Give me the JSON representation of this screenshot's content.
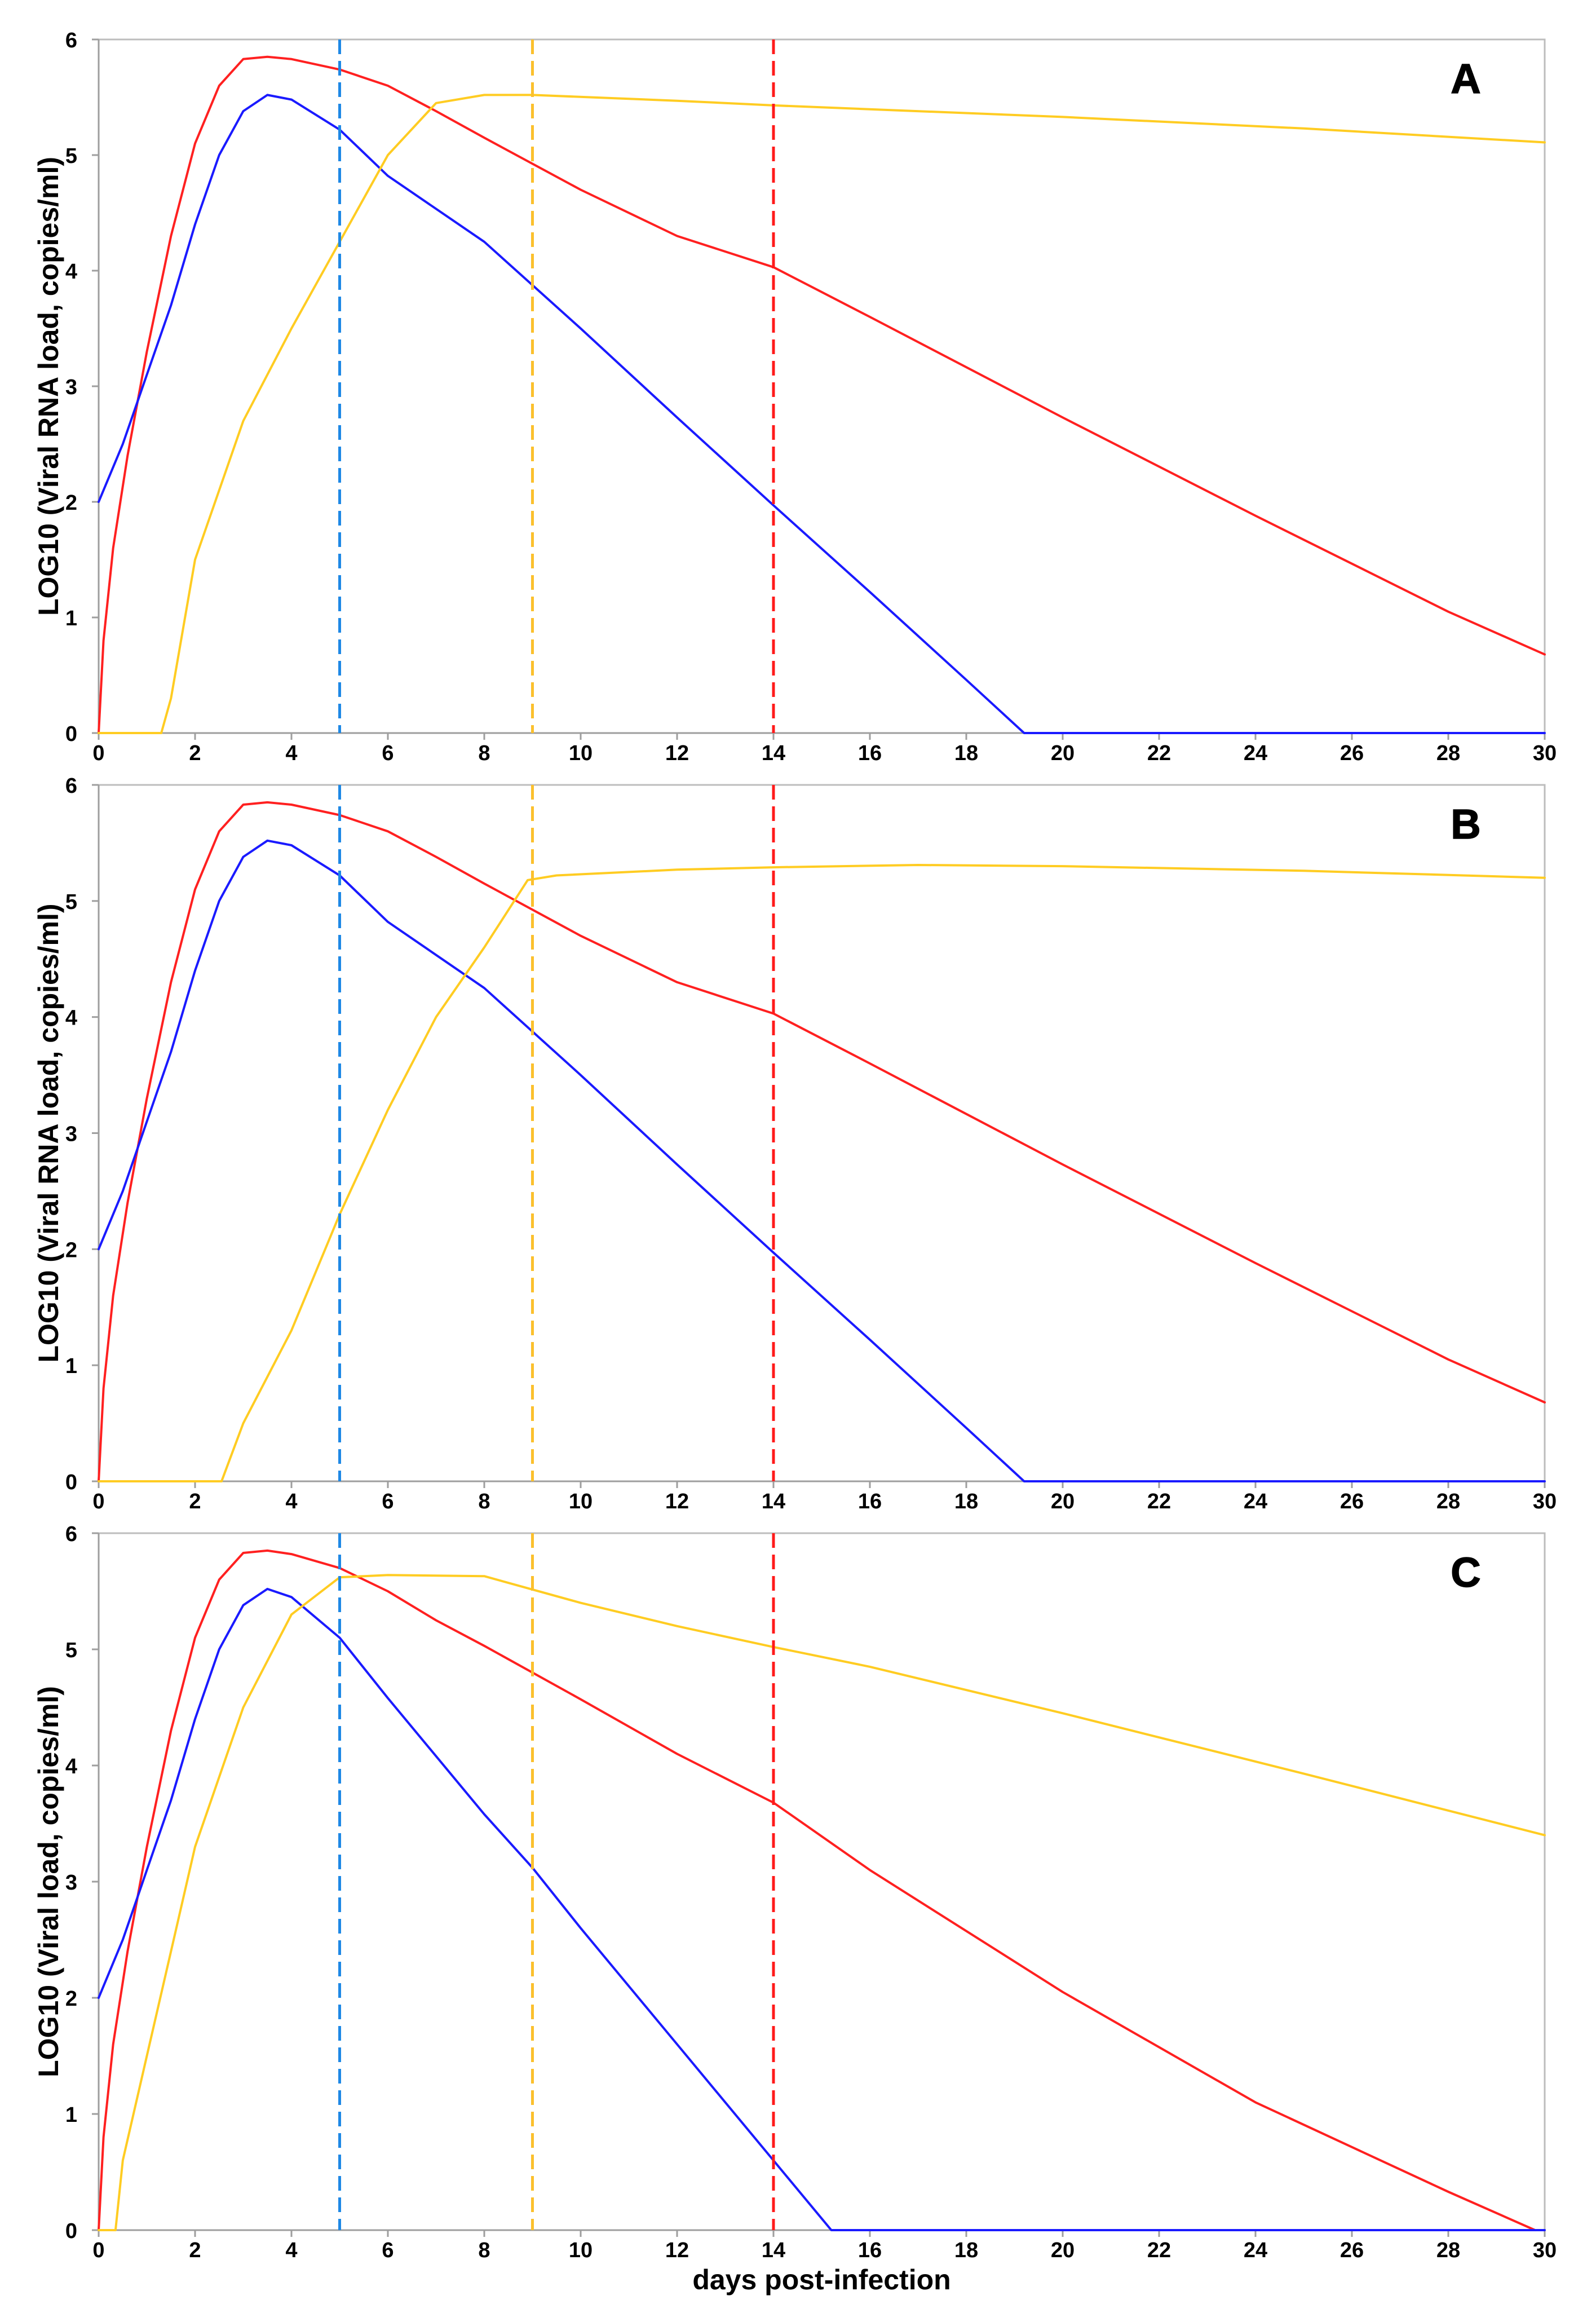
{
  "chart_data": [
    {
      "panel": "A",
      "type": "line",
      "title": "",
      "xlabel": "",
      "ylabel": "LOG10 (Viral RNA load, copies/ml)",
      "xlim": [
        0,
        30
      ],
      "ylim": [
        0,
        6
      ],
      "x_ticks": [
        "0",
        "2",
        "4",
        "6",
        "8",
        "10",
        "12",
        "14",
        "16",
        "18",
        "20",
        "22",
        "24",
        "26",
        "28",
        "30"
      ],
      "y_ticks": [
        "0",
        "1",
        "2",
        "3",
        "4",
        "5",
        "6"
      ],
      "vlines": [
        {
          "x": 5,
          "color": "#1e88e5"
        },
        {
          "x": 9,
          "color": "#fbc02d"
        },
        {
          "x": 14,
          "color": "#ff1a1a"
        }
      ],
      "series": [
        {
          "name": "red",
          "color": "#ff2020",
          "points": [
            [
              0,
              0
            ],
            [
              0.1,
              0.8
            ],
            [
              0.3,
              1.6
            ],
            [
              0.6,
              2.4
            ],
            [
              1,
              3.3
            ],
            [
              1.5,
              4.3
            ],
            [
              2,
              5.1
            ],
            [
              2.5,
              5.6
            ],
            [
              3,
              5.83
            ],
            [
              3.5,
              5.85
            ],
            [
              4,
              5.83
            ],
            [
              5,
              5.74
            ],
            [
              6,
              5.6
            ],
            [
              7,
              5.38
            ],
            [
              8,
              5.15
            ],
            [
              10,
              4.7
            ],
            [
              12,
              4.3
            ],
            [
              14,
              4.03
            ],
            [
              16,
              3.6
            ],
            [
              20,
              2.73
            ],
            [
              24,
              1.88
            ],
            [
              28,
              1.05
            ],
            [
              30,
              0.68
            ]
          ]
        },
        {
          "name": "blue",
          "color": "#1a1aff",
          "points": [
            [
              0,
              2
            ],
            [
              0.5,
              2.5
            ],
            [
              1,
              3.1
            ],
            [
              1.5,
              3.7
            ],
            [
              2,
              4.4
            ],
            [
              2.5,
              5.0
            ],
            [
              3,
              5.38
            ],
            [
              3.5,
              5.52
            ],
            [
              4,
              5.48
            ],
            [
              5,
              5.22
            ],
            [
              6,
              4.82
            ],
            [
              8,
              4.25
            ],
            [
              10,
              3.5
            ],
            [
              12,
              2.73
            ],
            [
              14,
              1.97
            ],
            [
              16,
              1.22
            ],
            [
              18,
              0.46
            ],
            [
              19.2,
              0
            ],
            [
              30,
              0
            ]
          ]
        },
        {
          "name": "yellow",
          "color": "#ffcc22",
          "points": [
            [
              0,
              0
            ],
            [
              1.3,
              0
            ],
            [
              1.5,
              0.3
            ],
            [
              2,
              1.5
            ],
            [
              3,
              2.7
            ],
            [
              4,
              3.5
            ],
            [
              5,
              4.25
            ],
            [
              6,
              5.0
            ],
            [
              7,
              5.45
            ],
            [
              8,
              5.52
            ],
            [
              9,
              5.52
            ],
            [
              12,
              5.47
            ],
            [
              14,
              5.43
            ],
            [
              20,
              5.33
            ],
            [
              25,
              5.23
            ],
            [
              30,
              5.11
            ]
          ]
        }
      ]
    },
    {
      "panel": "B",
      "type": "line",
      "title": "",
      "xlabel": "",
      "ylabel": "LOG10 (Viral RNA load, copies/ml)",
      "xlim": [
        0,
        30
      ],
      "ylim": [
        0,
        6
      ],
      "x_ticks": [
        "0",
        "2",
        "4",
        "6",
        "8",
        "10",
        "12",
        "14",
        "16",
        "18",
        "20",
        "22",
        "24",
        "26",
        "28",
        "30"
      ],
      "y_ticks": [
        "0",
        "1",
        "2",
        "3",
        "4",
        "5",
        "6"
      ],
      "vlines": [
        {
          "x": 5,
          "color": "#1e88e5"
        },
        {
          "x": 9,
          "color": "#fbc02d"
        },
        {
          "x": 14,
          "color": "#ff1a1a"
        }
      ],
      "series": [
        {
          "name": "red",
          "color": "#ff2020",
          "points": [
            [
              0,
              0
            ],
            [
              0.1,
              0.8
            ],
            [
              0.3,
              1.6
            ],
            [
              0.6,
              2.4
            ],
            [
              1,
              3.3
            ],
            [
              1.5,
              4.3
            ],
            [
              2,
              5.1
            ],
            [
              2.5,
              5.6
            ],
            [
              3,
              5.83
            ],
            [
              3.5,
              5.85
            ],
            [
              4,
              5.83
            ],
            [
              5,
              5.74
            ],
            [
              6,
              5.6
            ],
            [
              7,
              5.38
            ],
            [
              8,
              5.15
            ],
            [
              10,
              4.7
            ],
            [
              12,
              4.3
            ],
            [
              14,
              4.03
            ],
            [
              16,
              3.6
            ],
            [
              20,
              2.73
            ],
            [
              24,
              1.88
            ],
            [
              28,
              1.05
            ],
            [
              30,
              0.68
            ]
          ]
        },
        {
          "name": "blue",
          "color": "#1a1aff",
          "points": [
            [
              0,
              2
            ],
            [
              0.5,
              2.5
            ],
            [
              1,
              3.1
            ],
            [
              1.5,
              3.7
            ],
            [
              2,
              4.4
            ],
            [
              2.5,
              5.0
            ],
            [
              3,
              5.38
            ],
            [
              3.5,
              5.52
            ],
            [
              4,
              5.48
            ],
            [
              5,
              5.22
            ],
            [
              6,
              4.82
            ],
            [
              8,
              4.25
            ],
            [
              10,
              3.5
            ],
            [
              12,
              2.73
            ],
            [
              14,
              1.97
            ],
            [
              16,
              1.22
            ],
            [
              18,
              0.46
            ],
            [
              19.2,
              0
            ],
            [
              30,
              0
            ]
          ]
        },
        {
          "name": "yellow",
          "color": "#ffcc22",
          "points": [
            [
              0,
              0
            ],
            [
              2.55,
              0
            ],
            [
              3,
              0.5
            ],
            [
              4,
              1.3
            ],
            [
              5,
              2.3
            ],
            [
              6,
              3.2
            ],
            [
              7,
              4.0
            ],
            [
              8,
              4.6
            ],
            [
              8.9,
              5.18
            ],
            [
              9.5,
              5.22
            ],
            [
              12,
              5.27
            ],
            [
              14,
              5.29
            ],
            [
              17,
              5.31
            ],
            [
              20,
              5.3
            ],
            [
              25,
              5.26
            ],
            [
              30,
              5.2
            ]
          ]
        }
      ]
    },
    {
      "panel": "C",
      "type": "line",
      "title": "",
      "xlabel": "days post-infection",
      "ylabel": "LOG10 (Viral load, copies/ml)",
      "xlim": [
        0,
        30
      ],
      "ylim": [
        0,
        6
      ],
      "x_ticks": [
        "0",
        "2",
        "4",
        "6",
        "8",
        "10",
        "12",
        "14",
        "16",
        "18",
        "20",
        "22",
        "24",
        "26",
        "28",
        "30"
      ],
      "y_ticks": [
        "0",
        "1",
        "2",
        "3",
        "4",
        "5",
        "6"
      ],
      "vlines": [
        {
          "x": 5,
          "color": "#1e88e5"
        },
        {
          "x": 9,
          "color": "#fbc02d"
        },
        {
          "x": 14,
          "color": "#ff1a1a"
        }
      ],
      "series": [
        {
          "name": "red",
          "color": "#ff2020",
          "points": [
            [
              0,
              0
            ],
            [
              0.1,
              0.8
            ],
            [
              0.3,
              1.6
            ],
            [
              0.6,
              2.4
            ],
            [
              1,
              3.3
            ],
            [
              1.5,
              4.3
            ],
            [
              2,
              5.1
            ],
            [
              2.5,
              5.6
            ],
            [
              3,
              5.83
            ],
            [
              3.5,
              5.85
            ],
            [
              4,
              5.82
            ],
            [
              5,
              5.7
            ],
            [
              6,
              5.5
            ],
            [
              7,
              5.25
            ],
            [
              8,
              5.03
            ],
            [
              10,
              4.57
            ],
            [
              12,
              4.1
            ],
            [
              14,
              3.68
            ],
            [
              16,
              3.1
            ],
            [
              20,
              2.05
            ],
            [
              24,
              1.1
            ],
            [
              28,
              0.33
            ],
            [
              29.8,
              0
            ]
          ]
        },
        {
          "name": "blue",
          "color": "#1a1aff",
          "points": [
            [
              0,
              2
            ],
            [
              0.5,
              2.5
            ],
            [
              1,
              3.1
            ],
            [
              1.5,
              3.7
            ],
            [
              2,
              4.4
            ],
            [
              2.5,
              5.0
            ],
            [
              3,
              5.38
            ],
            [
              3.5,
              5.52
            ],
            [
              4,
              5.45
            ],
            [
              5,
              5.1
            ],
            [
              6,
              4.58
            ],
            [
              8,
              3.58
            ],
            [
              9,
              3.12
            ],
            [
              10,
              2.6
            ],
            [
              12,
              1.6
            ],
            [
              14,
              0.6
            ],
            [
              15.2,
              0
            ],
            [
              30,
              0
            ]
          ]
        },
        {
          "name": "yellow",
          "color": "#ffcc22",
          "points": [
            [
              0,
              0
            ],
            [
              0.35,
              0
            ],
            [
              0.5,
              0.6
            ],
            [
              1,
              1.5
            ],
            [
              1.5,
              2.4
            ],
            [
              2,
              3.3
            ],
            [
              3,
              4.5
            ],
            [
              4,
              5.3
            ],
            [
              5,
              5.62
            ],
            [
              6,
              5.64
            ],
            [
              8,
              5.63
            ],
            [
              10,
              5.4
            ],
            [
              12,
              5.2
            ],
            [
              14,
              5.02
            ],
            [
              16,
              4.85
            ],
            [
              20,
              4.45
            ],
            [
              25,
              3.93
            ],
            [
              30,
              3.4
            ]
          ]
        }
      ]
    }
  ]
}
